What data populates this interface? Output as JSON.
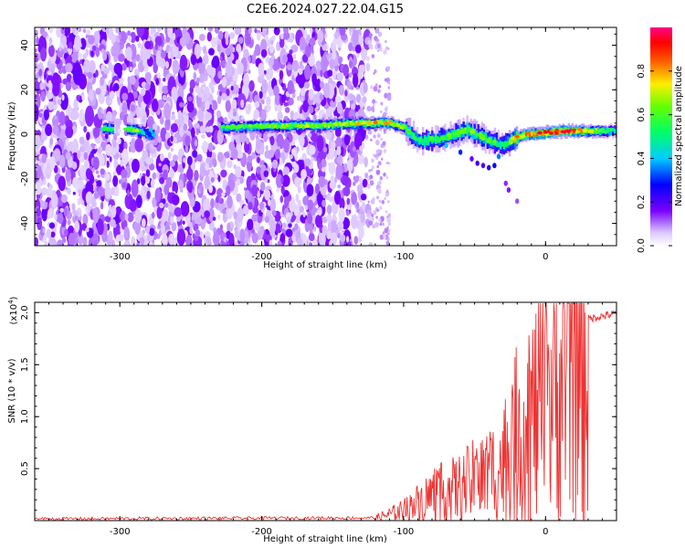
{
  "title": "C2E6.2024.027.22.04.G15",
  "chart_data": [
    {
      "type": "heatmap",
      "xlabel": "Height of straight line (km)",
      "ylabel": "Frequency (Hz)",
      "xlim": [
        -360,
        50
      ],
      "ylim": [
        -50,
        48
      ],
      "xticks": [
        -300,
        -200,
        -100,
        0
      ],
      "yticks": [
        -40,
        -20,
        0,
        20,
        40
      ],
      "colorbar": {
        "label": "Normalized spectral amplitude",
        "range": [
          0.0,
          1.0
        ],
        "ticks": [
          0.0,
          0.2,
          0.4,
          0.6,
          0.8
        ],
        "tick_labels": [
          "0.0",
          "0.2",
          "0.4",
          "0.6",
          "0.8"
        ],
        "colormap": "rainbow (white → purple → blue → cyan → green → yellow → red → magenta)"
      },
      "main_trace": [
        {
          "x": -312,
          "y": 2.5,
          "amp": 0.55
        },
        {
          "x": -290,
          "y": 2.0,
          "amp": 0.65
        },
        {
          "x": -280,
          "y": 0.0,
          "amp": 0.35
        },
        {
          "x": -228,
          "y": 3.0,
          "amp": 0.55
        },
        {
          "x": -200,
          "y": 3.5,
          "amp": 0.6
        },
        {
          "x": -160,
          "y": 4.0,
          "amp": 0.65
        },
        {
          "x": -130,
          "y": 5.0,
          "amp": 0.7
        },
        {
          "x": -110,
          "y": 5.0,
          "amp": 0.75
        },
        {
          "x": -100,
          "y": 3.0,
          "amp": 0.6
        },
        {
          "x": -90,
          "y": -3.0,
          "amp": 0.5
        },
        {
          "x": -75,
          "y": -2.0,
          "amp": 0.55
        },
        {
          "x": -55,
          "y": 2.0,
          "amp": 0.6
        },
        {
          "x": -40,
          "y": -3.0,
          "amp": 0.55
        },
        {
          "x": -30,
          "y": -5.0,
          "amp": 0.5
        },
        {
          "x": -20,
          "y": -1.0,
          "amp": 0.75
        },
        {
          "x": -5,
          "y": 0.5,
          "amp": 0.85
        },
        {
          "x": 15,
          "y": 1.5,
          "amp": 0.9
        },
        {
          "x": 50,
          "y": 1.5,
          "amp": 0.45
        }
      ],
      "noise_region_x": [
        -360,
        -125
      ],
      "noise_sparse_x": [
        -125,
        -110
      ]
    },
    {
      "type": "line",
      "xlabel": "Height of straight line (km)",
      "ylabel": "SNR (10 * v/v)",
      "y_multiplier_label": "(x10",
      "y_multiplier_exp": "4",
      "y_multiplier_close": ")",
      "xlim": [
        -360,
        50
      ],
      "ylim": [
        0,
        2.1
      ],
      "xticks": [
        -300,
        -200,
        -100,
        0
      ],
      "yticks": [
        0.5,
        1.0,
        1.5,
        2.0
      ],
      "ytick_labels": [
        "0.5",
        "1.0",
        "1.5",
        "2.0"
      ],
      "color": "#ee3333",
      "envelope": [
        {
          "x": -360,
          "y": 0.02
        },
        {
          "x": -120,
          "y": 0.03
        },
        {
          "x": -100,
          "y": 0.12
        },
        {
          "x": -80,
          "y": 0.3
        },
        {
          "x": -60,
          "y": 0.38
        },
        {
          "x": -40,
          "y": 0.55
        },
        {
          "x": -30,
          "y": 0.65
        },
        {
          "x": -20,
          "y": 1.0
        },
        {
          "x": -10,
          "y": 1.2
        },
        {
          "x": 0,
          "y": 1.35
        },
        {
          "x": 10,
          "y": 1.6
        },
        {
          "x": 20,
          "y": 1.85
        },
        {
          "x": 30,
          "y": 1.95
        },
        {
          "x": 50,
          "y": 2.0
        }
      ]
    }
  ]
}
